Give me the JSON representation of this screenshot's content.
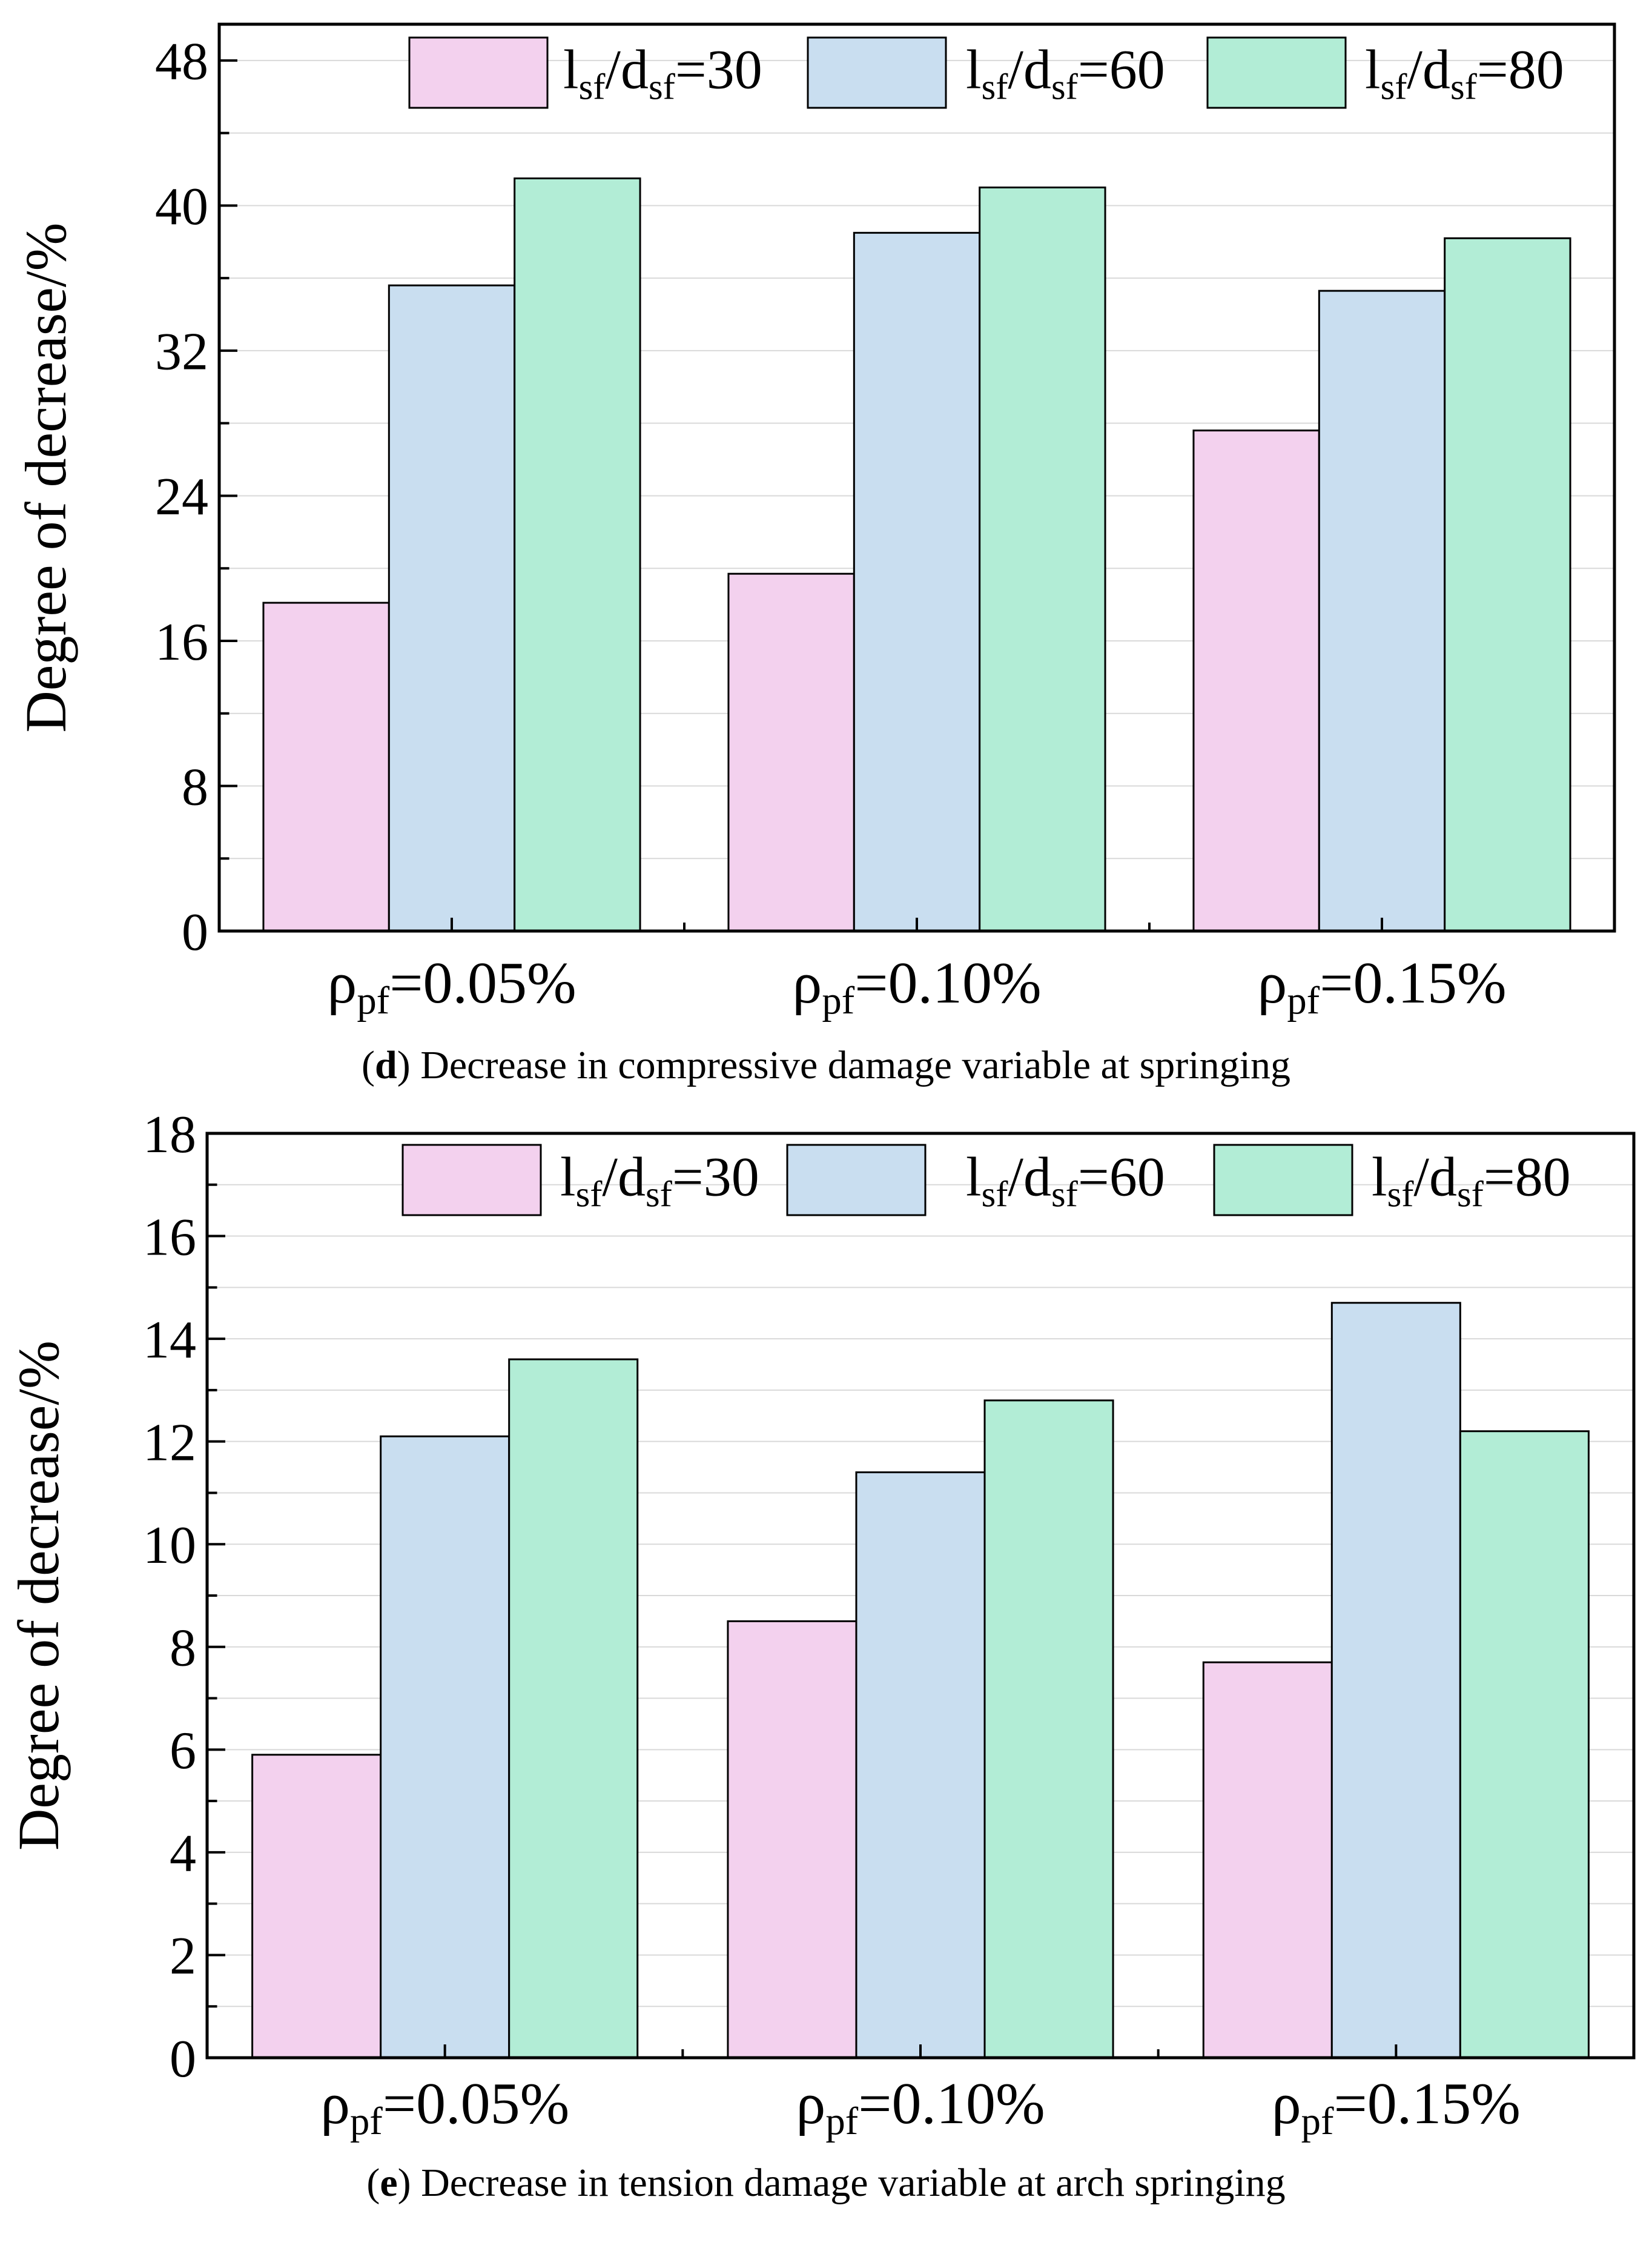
{
  "colors": {
    "series1": "#F3D1EE",
    "series2": "#C9DEF0",
    "series3": "#B2EDD6",
    "axis": "#000000",
    "grid": "#d9d9d9"
  },
  "legend_symbols": {
    "l": "l",
    "sf": "sf",
    "slash": "/",
    "d": "d",
    "eq": "=",
    "rho": "ρ",
    "pf": "pf"
  },
  "chart_data": [
    {
      "type": "bar",
      "panel": "d",
      "caption_label": "d",
      "caption_text": ") Decrease in compressive damage variable at springing",
      "caption_open": "(",
      "ylabel": "Degree of decrease/%",
      "ylim": [
        0,
        50
      ],
      "yticks": [
        0,
        8,
        16,
        24,
        32,
        40,
        48
      ],
      "ytick_labels": [
        "0",
        "8",
        "16",
        "24",
        "32",
        "40",
        "48"
      ],
      "categories": [
        "0.05%",
        "0.10%",
        "0.15%"
      ],
      "legend_values": [
        "30",
        "60",
        "80"
      ],
      "legend_position": "top-right",
      "series": [
        {
          "name": "lsf/dsf=30",
          "values": [
            18.1,
            19.7,
            27.6
          ]
        },
        {
          "name": "lsf/dsf=60",
          "values": [
            35.6,
            38.5,
            35.3
          ]
        },
        {
          "name": "lsf/dsf=80",
          "values": [
            41.5,
            41.0,
            38.2
          ]
        }
      ]
    },
    {
      "type": "bar",
      "panel": "e",
      "caption_label": "e",
      "caption_text": ") Decrease in tension damage variable at arch springing",
      "caption_open": "(",
      "ylabel": "Degree of decrease/%",
      "ylim": [
        0,
        18
      ],
      "yticks": [
        0,
        2,
        4,
        6,
        8,
        10,
        12,
        14,
        16,
        18
      ],
      "ytick_labels": [
        "0",
        "2",
        "4",
        "6",
        "8",
        "10",
        "12",
        "14",
        "16",
        "18"
      ],
      "categories": [
        "0.05%",
        "0.10%",
        "0.15%"
      ],
      "legend_values": [
        "30",
        "60",
        "80"
      ],
      "legend_position": "top-right",
      "series": [
        {
          "name": "lsf/dsf=30",
          "values": [
            5.9,
            8.5,
            7.7
          ]
        },
        {
          "name": "lsf/dsf=60",
          "values": [
            12.1,
            11.4,
            14.7
          ]
        },
        {
          "name": "lsf/dsf=80",
          "values": [
            13.6,
            12.8,
            12.2
          ]
        }
      ]
    }
  ]
}
